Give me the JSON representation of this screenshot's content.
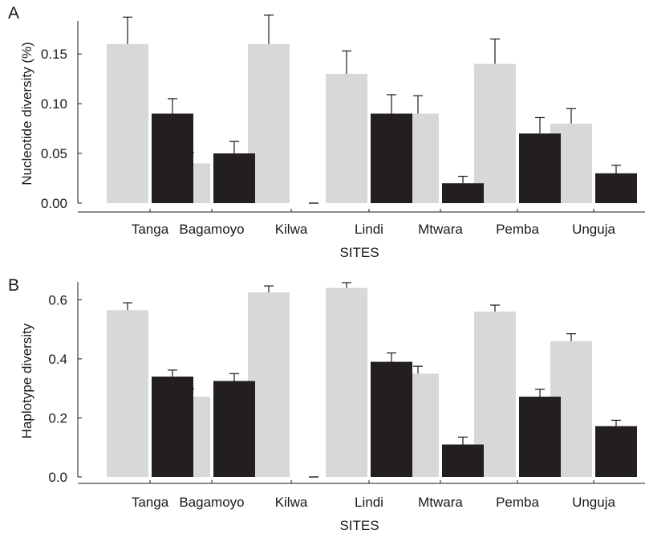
{
  "chart_data": [
    {
      "panel": "A",
      "type": "bar",
      "categories": [
        "Tanga",
        "Bagamoyo",
        "Kilwa",
        "Lindi",
        "Mtwara",
        "Pemba",
        "Unguja"
      ],
      "series": [
        {
          "values": [
            0.16,
            0.04,
            0.16,
            0.13,
            0.09,
            0.14,
            0.08
          ],
          "errors": [
            0.027,
            0.011,
            0.029,
            0.023,
            0.018,
            0.025,
            0.015
          ],
          "color": "#d7d8da"
        },
        {
          "values": [
            0.09,
            0.05,
            0.0,
            0.09,
            0.02,
            0.07,
            0.03
          ],
          "errors": [
            0.015,
            0.012,
            0.0,
            0.019,
            0.007,
            0.016,
            0.008
          ],
          "color": "#231f20"
        }
      ],
      "ylabel": "Nucleotide diversity (%)",
      "xlabel": "SITES",
      "ylim": [
        0,
        0.18
      ],
      "yticks": [
        "0.00",
        "0.05",
        "0.10",
        "0.15"
      ],
      "ytick_values": [
        0,
        0.05,
        0.1,
        0.15
      ],
      "grid": false
    },
    {
      "panel": "B",
      "type": "bar",
      "categories": [
        "Tanga",
        "Bagamoyo",
        "Kilwa",
        "Lindi",
        "Mtwara",
        "Pemba",
        "Unguja"
      ],
      "series": [
        {
          "values": [
            0.565,
            0.272,
            0.625,
            0.64,
            0.35,
            0.56,
            0.46
          ],
          "errors": [
            0.025,
            0.027,
            0.022,
            0.018,
            0.025,
            0.022,
            0.025
          ],
          "color": "#d7d8da"
        },
        {
          "values": [
            0.34,
            0.325,
            0.0,
            0.39,
            0.11,
            0.272,
            0.172
          ],
          "errors": [
            0.022,
            0.025,
            0.0,
            0.03,
            0.025,
            0.025,
            0.02
          ],
          "color": "#231f20"
        }
      ],
      "ylabel": "Haplotype diversity",
      "xlabel": "SITES",
      "ylim": [
        0,
        0.65
      ],
      "yticks": [
        "0.0",
        "0.2",
        "0.4",
        "0.6"
      ],
      "ytick_values": [
        0,
        0.2,
        0.4,
        0.6
      ],
      "grid": false
    }
  ]
}
